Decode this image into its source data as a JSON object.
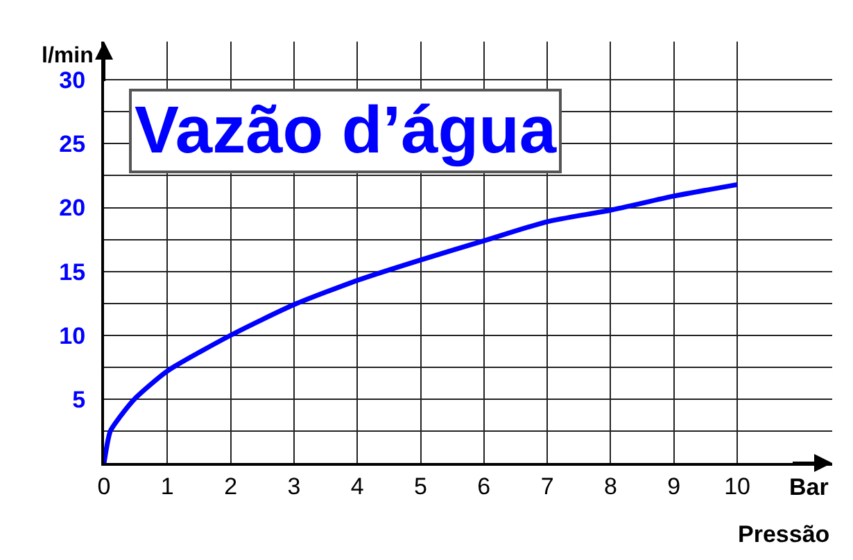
{
  "chart_data": {
    "type": "line",
    "title": "Vazão d’água",
    "ylabel": "l/min",
    "xlabel": "Bar",
    "annotations": [
      "Pressão"
    ],
    "x": [
      0,
      0.1,
      0.25,
      0.5,
      1,
      2,
      3,
      4,
      5,
      6,
      7,
      8,
      9,
      10
    ],
    "series": [
      {
        "color": "#0000ff",
        "values": [
          0,
          2.5,
          3.6,
          5.1,
          7.2,
          10,
          12.4,
          14.3,
          15.9,
          17.4,
          18.9,
          19.8,
          20.9,
          21.8
        ]
      }
    ],
    "xlim": [
      0,
      11.5
    ],
    "ylim": [
      0,
      33
    ],
    "xticks": [
      0,
      1,
      2,
      3,
      4,
      5,
      6,
      7,
      8,
      9,
      10
    ],
    "yticks": [
      {
        "value": 2.5,
        "label": null
      },
      5,
      {
        "value": 7.5,
        "label": null
      },
      10,
      {
        "value": 12.5,
        "label": null
      },
      15,
      {
        "value": 17.5,
        "label": null
      },
      20,
      {
        "value": 22.5,
        "label": null
      },
      25,
      {
        "value": 27.5,
        "label": null
      },
      30
    ],
    "grid": true,
    "marker": "none",
    "line_style": "solid"
  }
}
